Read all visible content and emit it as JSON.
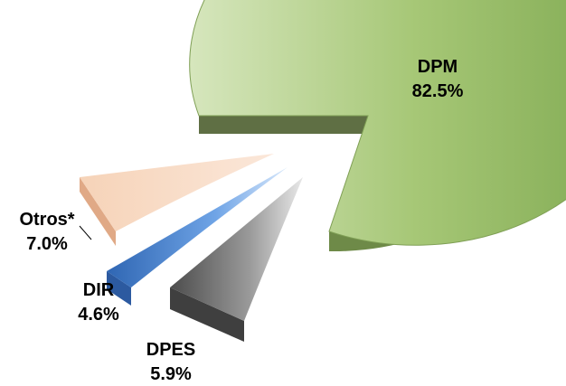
{
  "chart_data": {
    "type": "pie",
    "title": "",
    "slices": [
      {
        "label": "DPM",
        "value": 82.5,
        "value_label": "82.5%",
        "color": "#8fb75c",
        "explode": false
      },
      {
        "label": "DPES",
        "value": 5.9,
        "value_label": "5.9%",
        "color": "#7a7a7a",
        "explode": true
      },
      {
        "label": "DIR",
        "value": 4.6,
        "value_label": "4.6%",
        "color": "#4a86d0",
        "explode": true
      },
      {
        "label": "Otros*",
        "value": 7.0,
        "value_label": "7.0%",
        "color": "#f3c7a6",
        "explode": true
      }
    ],
    "style": "3d-exploded",
    "legend": "none"
  }
}
